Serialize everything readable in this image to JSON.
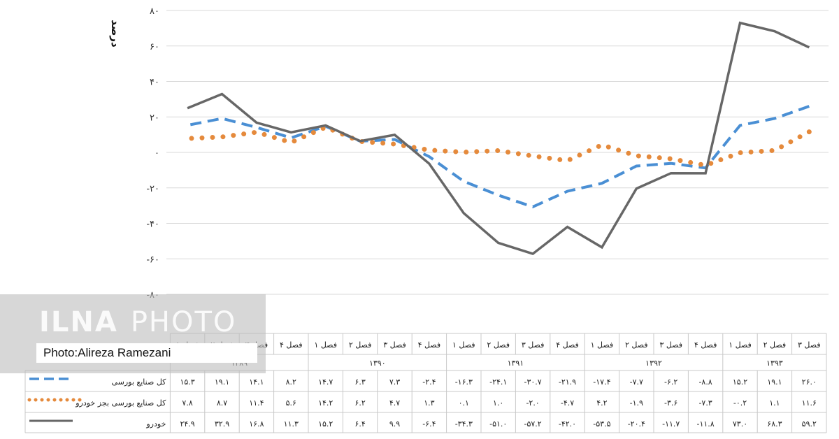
{
  "chart_data": {
    "type": "line",
    "ylabel": "درصد",
    "ylim": [
      -80,
      80
    ],
    "yticks": [
      "۸۰",
      "۶۰",
      "۴۰",
      "۲۰",
      "۰",
      "-۲۰",
      "-۴۰",
      "-۶۰",
      "-۸۰"
    ],
    "ytick_values": [
      80,
      60,
      40,
      20,
      0,
      -20,
      -40,
      -60,
      -80
    ],
    "grid": true,
    "quarters": [
      "فصل ۳",
      "فصل ۲",
      "فصل ۱",
      "فصل ۴",
      "فصل ۳",
      "فصل ۲",
      "فصل ۱",
      "فصل ۴",
      "فصل ۳",
      "فصل ۲",
      "فصل ۱",
      "فصل ۴",
      "فصل ۳",
      "فصل ۲",
      "فصل ۱",
      "فصل ۴",
      "فصل ۳",
      "فصل ۲",
      "فصل ۱"
    ],
    "years": [
      {
        "label": "۱۳۹۳",
        "columns": [
          0,
          2
        ]
      },
      {
        "label": "۱۳۹۲",
        "columns": [
          3,
          6
        ]
      },
      {
        "label": "۱۳۹۱",
        "columns": [
          7,
          10
        ]
      },
      {
        "label": "۱۳۹۰",
        "columns": [
          11,
          14
        ]
      },
      {
        "label": "۱۳۸۹",
        "columns": [
          15,
          18
        ]
      }
    ],
    "series": [
      {
        "name": "کل صنایع بورسی",
        "color": "#4a8fd4",
        "style": "dashed",
        "values": [
          26.0,
          19.1,
          15.2,
          -8.8,
          -6.2,
          -7.7,
          -17.4,
          -21.9,
          -30.7,
          -24.1,
          -16.3,
          -2.4,
          7.3,
          6.3,
          14.7,
          8.2,
          14.1,
          19.1,
          15.3
        ],
        "labels": [
          "۲۶.۰",
          "۱۹.۱",
          "۱۵.۲",
          "-۸.۸",
          "-۶.۲",
          "-۷.۷",
          "-۱۷.۴",
          "-۲۱.۹",
          "-۳۰.۷",
          "-۲۴.۱",
          "-۱۶.۳",
          "-۲.۴",
          "۷.۳",
          "۶.۳",
          "۱۴.۷",
          "۸.۲",
          "۱۴.۱",
          "۱۹.۱",
          "۱۵.۳"
        ]
      },
      {
        "name": "کل صنایع بورسی بجز خودرو",
        "color": "#e58a3c",
        "style": "dotted",
        "values": [
          11.6,
          1.1,
          -0.2,
          -7.3,
          -3.6,
          -1.9,
          4.2,
          -4.7,
          -2.0,
          1.0,
          0.1,
          1.3,
          4.7,
          6.2,
          14.2,
          5.6,
          11.4,
          8.7,
          7.8
        ],
        "labels": [
          "۱۱.۶",
          "۱.۱",
          "-۰.۲",
          "-۷.۳",
          "-۳.۶",
          "-۱.۹",
          "۴.۲",
          "-۴.۷",
          "-۲.۰",
          "۱.۰",
          "۰.۱",
          "۱.۳",
          "۴.۷",
          "۶.۲",
          "۱۴.۲",
          "۵.۶",
          "۱۱.۴",
          "۸.۷",
          "۷.۸"
        ]
      },
      {
        "name": "خودرو",
        "color": "#676767",
        "style": "solid",
        "values": [
          59.2,
          68.3,
          73.0,
          -11.8,
          -11.7,
          -20.4,
          -53.5,
          -42.0,
          -57.2,
          -51.0,
          -34.3,
          -6.4,
          9.9,
          6.4,
          15.2,
          11.3,
          16.8,
          32.9,
          24.9
        ],
        "labels": [
          "۵۹.۲",
          "۶۸.۳",
          "۷۳.۰",
          "-۱۱.۸",
          "-۱۱.۷",
          "-۲۰.۴",
          "-۵۳.۵",
          "-۴۲.۰",
          "-۵۷.۲",
          "-۵۱.۰",
          "-۳۴.۳",
          "-۶.۴",
          "۹.۹",
          "۶.۴",
          "۱۵.۲",
          "۱۱.۳",
          "۱۶.۸",
          "۳۲.۹",
          "۲۴.۹"
        ]
      }
    ]
  },
  "watermark": {
    "logo_bold": "ILNA",
    "logo_light": "PHOTO",
    "credit": "Photo:Alireza Ramezani"
  }
}
